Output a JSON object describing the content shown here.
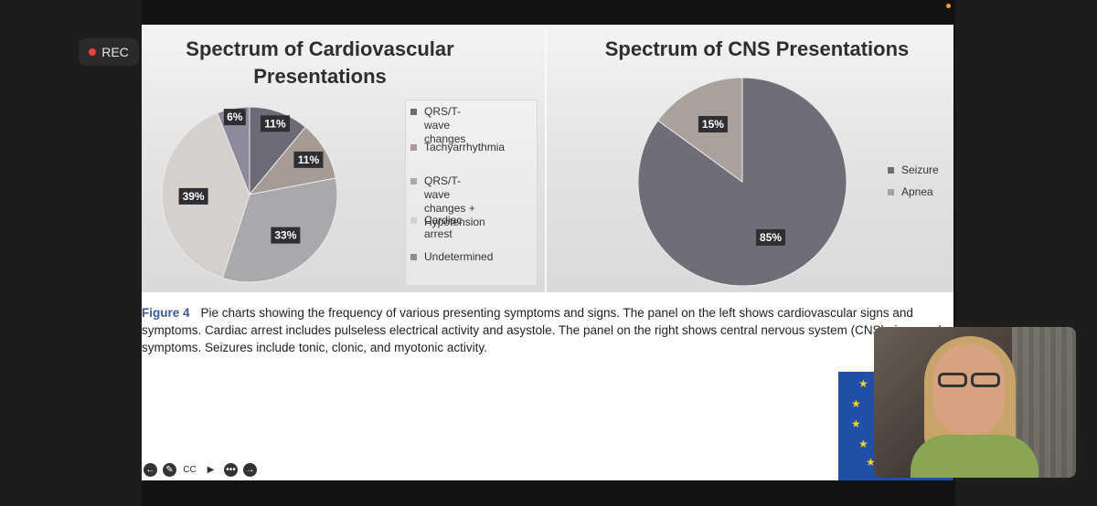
{
  "recording": {
    "label": "REC"
  },
  "slide": {
    "left_chart": {
      "title": "Spectrum of Cardiovascular Presentations",
      "chart_data": {
        "type": "pie",
        "title": "Spectrum of Cardiovascular Presentations",
        "slices": [
          {
            "label": "QRS/T-wave changes",
            "value": 11,
            "display": "11%",
            "color": "#6b6a76"
          },
          {
            "label": "Tachyarrhythmia",
            "value": 11,
            "display": "11%",
            "color": "#a59b94"
          },
          {
            "label": "QRS/T-wave changes + Hypotension",
            "value": 33,
            "display": "33%",
            "color": "#a9a9ad"
          },
          {
            "label": "Cardiac arrest",
            "value": 39,
            "display": "39%",
            "color": "#d6d0cc"
          },
          {
            "label": "Undetermined",
            "value": 6,
            "display": "6%",
            "color": "#8e8a9c"
          }
        ]
      },
      "legend": [
        {
          "line1": "QRS/T-wave changes",
          "line2": "",
          "color": "#6b6a76"
        },
        {
          "line1": "Tachyarrhythmia",
          "line2": "",
          "color": "#a59b94"
        },
        {
          "line1": "QRS/T-wave changes +",
          "line2": "Hypotension",
          "color": "#a9a9ad"
        },
        {
          "line1": "Cardiac arrest",
          "line2": "",
          "color": "#d6d0cc"
        },
        {
          "line1": "Undetermined",
          "line2": "",
          "color": "#8e8a9c"
        }
      ]
    },
    "right_chart": {
      "title": "Spectrum of CNS Presentations",
      "chart_data": {
        "type": "pie",
        "title": "Spectrum of CNS Presentations",
        "slices": [
          {
            "label": "Seizure",
            "value": 85,
            "display": "85%",
            "color": "#6e6d78"
          },
          {
            "label": "Apnea",
            "value": 15,
            "display": "15%",
            "color": "#a9a19b"
          }
        ]
      },
      "legend": [
        {
          "line1": "Seizure",
          "color": "#6e6d78"
        },
        {
          "line1": "Apnea",
          "color": "#a9a19b"
        }
      ]
    },
    "caption": {
      "figure_label": "Figure 4",
      "text": "Pie charts showing the frequency of various presenting symptoms and signs. The panel on the left shows cardiovascular signs and symptoms. Cardiac arrest includes pulseless electrical activity and asystole. The panel on the right shows central nervous system (CNS) signs and symptoms. Seizures include tonic, clonic, and myotonic activity."
    }
  },
  "toolbar": {
    "icons": [
      "back-arrow-icon",
      "pen-icon",
      "cc-icon",
      "video-icon",
      "more-icon",
      "forward-arrow-icon"
    ],
    "glyphs": [
      "←",
      "✎",
      "CC",
      "▶",
      "•••",
      "→"
    ],
    "cc_label": "CC"
  }
}
